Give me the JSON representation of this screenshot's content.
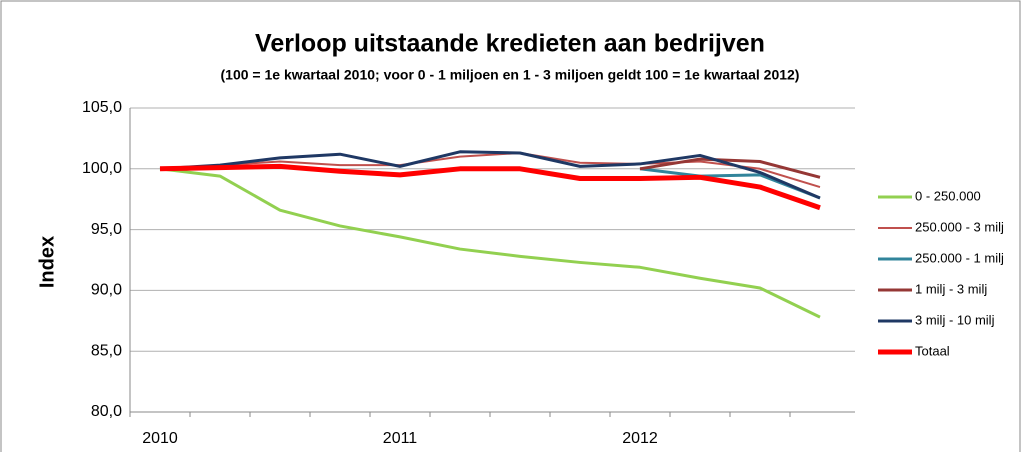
{
  "chart_data": {
    "type": "line",
    "title": "Verloop uitstaande kredieten aan bedrijven",
    "subtitle": "(100 = 1e kwartaal 2010; voor 0 - 1 miljoen en 1 - 3 miljoen geldt 100 = 1e kwartaal 2012)",
    "y_label": "Index",
    "categories": [
      "2010",
      null,
      null,
      null,
      "2011",
      null,
      null,
      null,
      "2012",
      null,
      null,
      null
    ],
    "series": [
      {
        "name": "0 - 250.000",
        "color": "#92d050",
        "values": [
          100,
          99.4,
          96.6,
          95.3,
          94.4,
          93.4,
          92.8,
          92.3,
          91.9,
          91.0,
          90.2,
          87.8
        ]
      },
      {
        "name": "250.000 - 3 milj",
        "color": "#c0504d",
        "values": [
          100,
          100.3,
          100.6,
          100.3,
          100.3,
          101.0,
          101.3,
          100.5,
          100.4,
          100.6,
          100.0,
          98.5
        ]
      },
      {
        "name": "250.000 - 1 milj",
        "color": "#31849b",
        "values": [
          null,
          null,
          null,
          null,
          null,
          null,
          null,
          null,
          100,
          99.4,
          99.5,
          97.6
        ]
      },
      {
        "name": "1 milj - 3 milj",
        "color": "#953735",
        "values": [
          null,
          null,
          null,
          null,
          null,
          null,
          null,
          null,
          100,
          100.8,
          100.6,
          99.3
        ]
      },
      {
        "name": "3 milj - 10 milj",
        "color": "#1f3864",
        "values": [
          100,
          100.3,
          100.9,
          101.2,
          100.2,
          101.4,
          101.3,
          100.2,
          100.4,
          101.1,
          99.7,
          97.6
        ]
      },
      {
        "name": "Totaal",
        "color": "#ff0000",
        "values": [
          100,
          100.1,
          100.2,
          99.8,
          99.5,
          100.0,
          100.0,
          99.2,
          99.2,
          99.3,
          98.5,
          96.8
        ]
      }
    ],
    "ylim": [
      80,
      105
    ],
    "yticks": [
      {
        "value": 80,
        "label": "80,0"
      },
      {
        "value": 85,
        "label": "85,0"
      },
      {
        "value": 90,
        "label": "90,0"
      },
      {
        "value": 95,
        "label": "95,0"
      },
      {
        "value": 100,
        "label": "100,0"
      },
      {
        "value": 105,
        "label": "105,0"
      }
    ],
    "grid": true,
    "legend": "right"
  }
}
